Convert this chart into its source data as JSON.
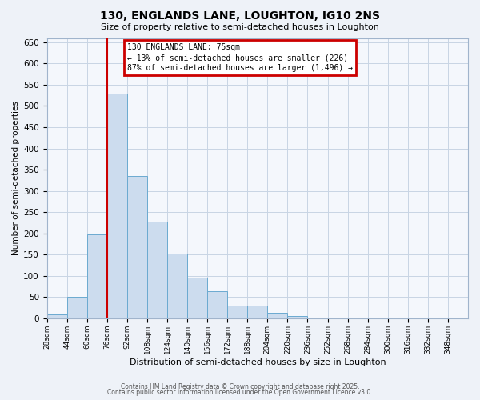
{
  "title": "130, ENGLANDS LANE, LOUGHTON, IG10 2NS",
  "subtitle": "Size of property relative to semi-detached houses in Loughton",
  "bar_values": [
    10,
    50,
    197,
    530,
    335,
    228,
    153,
    95,
    63,
    30,
    30,
    13,
    5,
    1,
    0,
    0,
    0,
    0,
    0,
    0,
    0
  ],
  "bin_labels": [
    "28sqm",
    "44sqm",
    "60sqm",
    "76sqm",
    "92sqm",
    "108sqm",
    "124sqm",
    "140sqm",
    "156sqm",
    "172sqm",
    "188sqm",
    "204sqm",
    "220sqm",
    "236sqm",
    "252sqm",
    "268sqm",
    "284sqm",
    "300sqm",
    "316sqm",
    "332sqm",
    "348sqm"
  ],
  "bar_color": "#ccdcee",
  "bar_edge_color": "#6baad0",
  "bar_width": 1.0,
  "marker_line_color": "#cc0000",
  "xlabel": "Distribution of semi-detached houses by size in Loughton",
  "ylabel": "Number of semi-detached properties",
  "ylim": [
    0,
    660
  ],
  "yticks": [
    0,
    50,
    100,
    150,
    200,
    250,
    300,
    350,
    400,
    450,
    500,
    550,
    600,
    650
  ],
  "annotation_title": "130 ENGLANDS LANE: 75sqm",
  "annotation_line1": "← 13% of semi-detached houses are smaller (226)",
  "annotation_line2": "87% of semi-detached houses are larger (1,496) →",
  "annotation_box_color": "#cc0000",
  "footer1": "Contains HM Land Registry data © Crown copyright and database right 2025.",
  "footer2": "Contains public sector information licensed under the Open Government Licence v3.0.",
  "bg_color": "#eef2f8",
  "plot_bg_color": "#f4f7fc",
  "grid_color": "#c8d4e4"
}
